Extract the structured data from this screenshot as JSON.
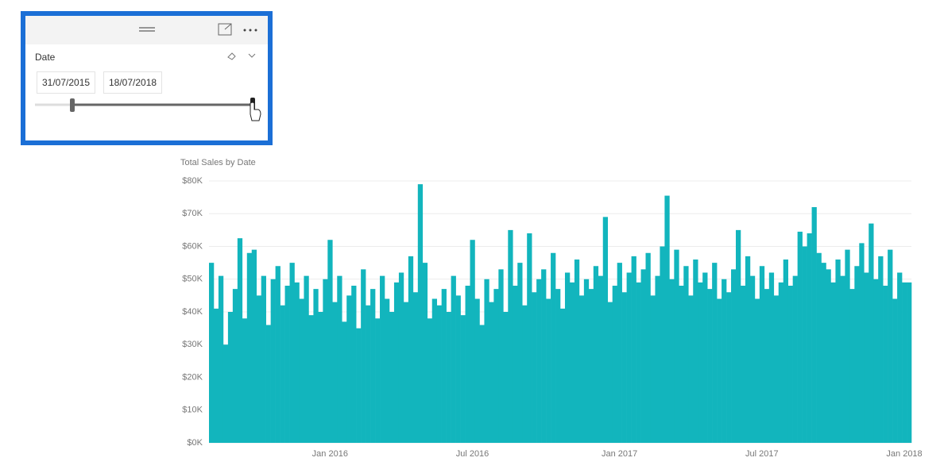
{
  "slicer": {
    "title": "Date",
    "start": "31/07/2015",
    "end": "18/07/2018"
  },
  "chart_data": {
    "type": "bar",
    "title": "Total Sales by Date",
    "color": "#12b5bd",
    "grid": true,
    "ylim": [
      0,
      80000
    ],
    "yticks": [
      {
        "value": 0,
        "label": "$0K"
      },
      {
        "value": 10000,
        "label": "$10K"
      },
      {
        "value": 20000,
        "label": "$20K"
      },
      {
        "value": 30000,
        "label": "$30K"
      },
      {
        "value": 40000,
        "label": "$40K"
      },
      {
        "value": 50000,
        "label": "$50K"
      },
      {
        "value": 60000,
        "label": "$60K"
      },
      {
        "value": 70000,
        "label": "$70K"
      },
      {
        "value": 80000,
        "label": "$80K"
      }
    ],
    "categories": [
      null,
      null,
      null,
      null,
      null,
      null,
      null,
      null,
      null,
      null,
      null,
      null,
      null,
      null,
      null,
      null,
      null,
      null,
      null,
      null,
      null,
      null,
      null,
      null,
      null,
      "Jan 2016",
      null,
      null,
      null,
      null,
      null,
      null,
      null,
      null,
      null,
      null,
      null,
      null,
      null,
      null,
      null,
      null,
      null,
      null,
      null,
      null,
      null,
      null,
      null,
      null,
      null,
      null,
      null,
      null,
      null,
      "Jul 2016",
      null,
      null,
      null,
      null,
      null,
      null,
      null,
      null,
      null,
      null,
      null,
      null,
      null,
      null,
      null,
      null,
      null,
      null,
      null,
      null,
      null,
      null,
      null,
      null,
      null,
      null,
      null,
      null,
      null,
      null,
      "Jan 2017",
      null,
      null,
      null,
      null,
      null,
      null,
      null,
      null,
      null,
      null,
      null,
      null,
      null,
      null,
      null,
      null,
      null,
      null,
      null,
      null,
      null,
      null,
      null,
      null,
      null,
      null,
      null,
      null,
      null,
      "Jul 2017",
      null,
      null,
      null,
      null,
      null,
      null,
      null,
      null,
      null,
      null,
      null,
      null,
      null,
      null,
      null,
      null,
      null,
      null,
      null,
      null,
      null,
      null,
      null,
      null,
      null,
      null,
      null,
      null,
      null,
      "Jan 2018",
      null
    ],
    "values": [
      55000,
      41000,
      51000,
      30000,
      40000,
      47000,
      62500,
      38000,
      58000,
      59000,
      45000,
      51000,
      36000,
      50000,
      54000,
      42000,
      48000,
      55000,
      49000,
      44000,
      51000,
      39000,
      47000,
      40000,
      50000,
      62000,
      43000,
      51000,
      37000,
      45000,
      48000,
      35000,
      53000,
      42000,
      47000,
      38000,
      51000,
      44000,
      40000,
      49000,
      52000,
      43000,
      57000,
      46000,
      79000,
      55000,
      38000,
      44000,
      42000,
      47000,
      40000,
      51000,
      45000,
      39000,
      48000,
      62000,
      44000,
      36000,
      50000,
      43000,
      47000,
      53000,
      40000,
      65000,
      48000,
      55000,
      42000,
      64000,
      46000,
      50000,
      53000,
      44000,
      58000,
      47000,
      41000,
      52000,
      49000,
      56000,
      45000,
      50000,
      47000,
      54000,
      51000,
      69000,
      43000,
      48000,
      55000,
      46000,
      52000,
      57000,
      49000,
      53000,
      58000,
      45000,
      51000,
      60000,
      75500,
      50000,
      59000,
      48000,
      54000,
      45000,
      56000,
      49000,
      52000,
      47000,
      55000,
      44000,
      50000,
      46000,
      53000,
      65000,
      48000,
      57000,
      51000,
      44000,
      54000,
      47000,
      52000,
      45000,
      49000,
      56000,
      48000,
      51000,
      64500,
      60000,
      64000,
      72000,
      58000,
      55000,
      53000,
      49000,
      56000,
      51000,
      59000,
      47000,
      54000,
      61000,
      52000,
      67000,
      50000,
      57000,
      48000,
      59000,
      44000,
      52000,
      49000,
      49000
    ]
  }
}
